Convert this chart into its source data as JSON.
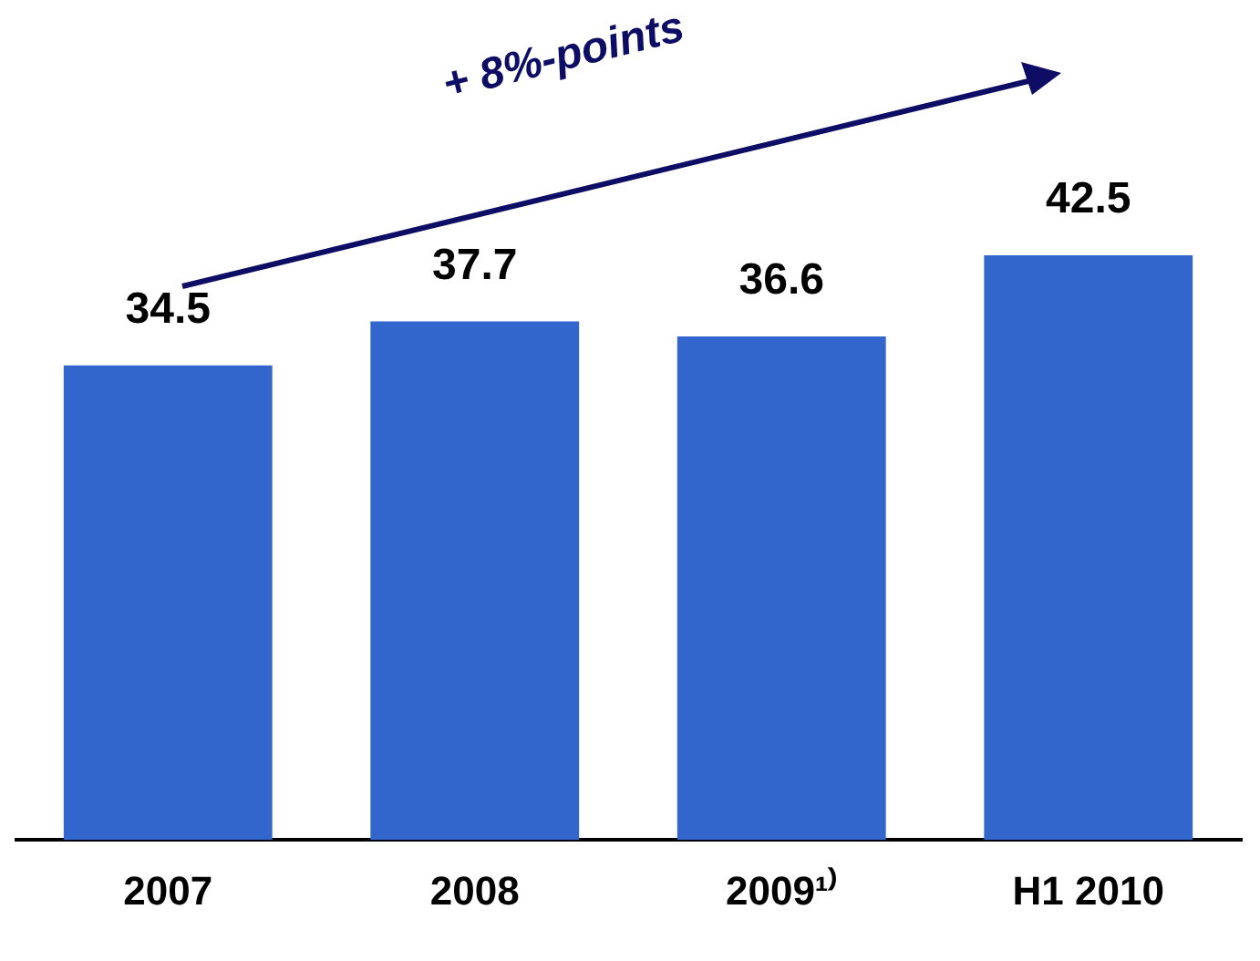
{
  "chart_data": {
    "type": "bar",
    "categories": [
      "2007",
      "2008",
      "2009¹⁾",
      "H1 2010"
    ],
    "values": [
      34.5,
      37.7,
      36.6,
      42.5
    ],
    "color": "#3366cc",
    "data_labels": true,
    "grid": false,
    "legend": false,
    "tick_labels": "x",
    "annotations": [
      "+ 8%-points"
    ]
  }
}
